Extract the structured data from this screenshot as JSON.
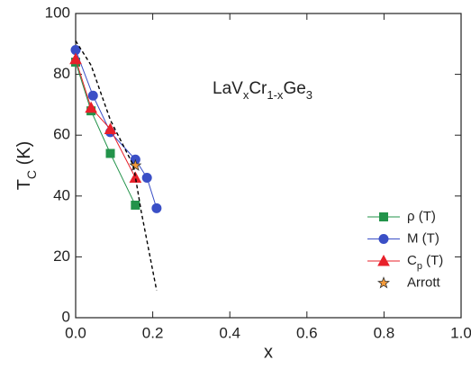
{
  "chart_data": {
    "type": "line",
    "annotation": [
      "LaV",
      "x",
      "Cr",
      "1-x",
      "Ge",
      "3"
    ],
    "xlabel": "x",
    "ylabel": [
      "T",
      "C",
      " (K)"
    ],
    "xlim": [
      0.0,
      1.0
    ],
    "xticks": [
      {
        "value": 0,
        "label": "0.0"
      },
      0.2,
      0.4,
      0.6,
      0.8,
      {
        "value": 1,
        "label": "1.0"
      }
    ],
    "ylim": [
      0,
      100
    ],
    "yticks": [
      0,
      20,
      40,
      60,
      80,
      100
    ],
    "legend": "lower right",
    "series": [
      {
        "name": [
          "ρ (T)"
        ],
        "color": "#22934a",
        "marker": "square",
        "line": true,
        "x": [
          0.0,
          0.04,
          0.09,
          0.155
        ],
        "values": [
          84,
          68,
          54,
          37
        ]
      },
      {
        "name": [
          "M (T)"
        ],
        "color": "#3a4fc6",
        "marker": "circle",
        "line": true,
        "x": [
          0.0,
          0.045,
          0.09,
          0.155,
          0.185,
          0.21
        ],
        "values": [
          88,
          73,
          61,
          52,
          46,
          36
        ]
      },
      {
        "name": [
          "C",
          "p",
          " (T)"
        ],
        "color": "#e8202a",
        "marker": "triangle",
        "line": true,
        "x": [
          0.0,
          0.04,
          0.09,
          0.155
        ],
        "values": [
          85,
          69,
          62,
          46
        ]
      },
      {
        "name": [
          "Arrott"
        ],
        "color": "#f39a3a",
        "marker": "star",
        "line": false,
        "x": [
          0.155
        ],
        "values": [
          50
        ]
      },
      {
        "color": "#000000",
        "marker": "none",
        "line": true,
        "dashed": true,
        "x": [
          0.0,
          0.04,
          0.09,
          0.15,
          0.17,
          0.21
        ],
        "values": [
          91,
          83,
          65,
          50,
          35,
          9
        ]
      }
    ]
  }
}
